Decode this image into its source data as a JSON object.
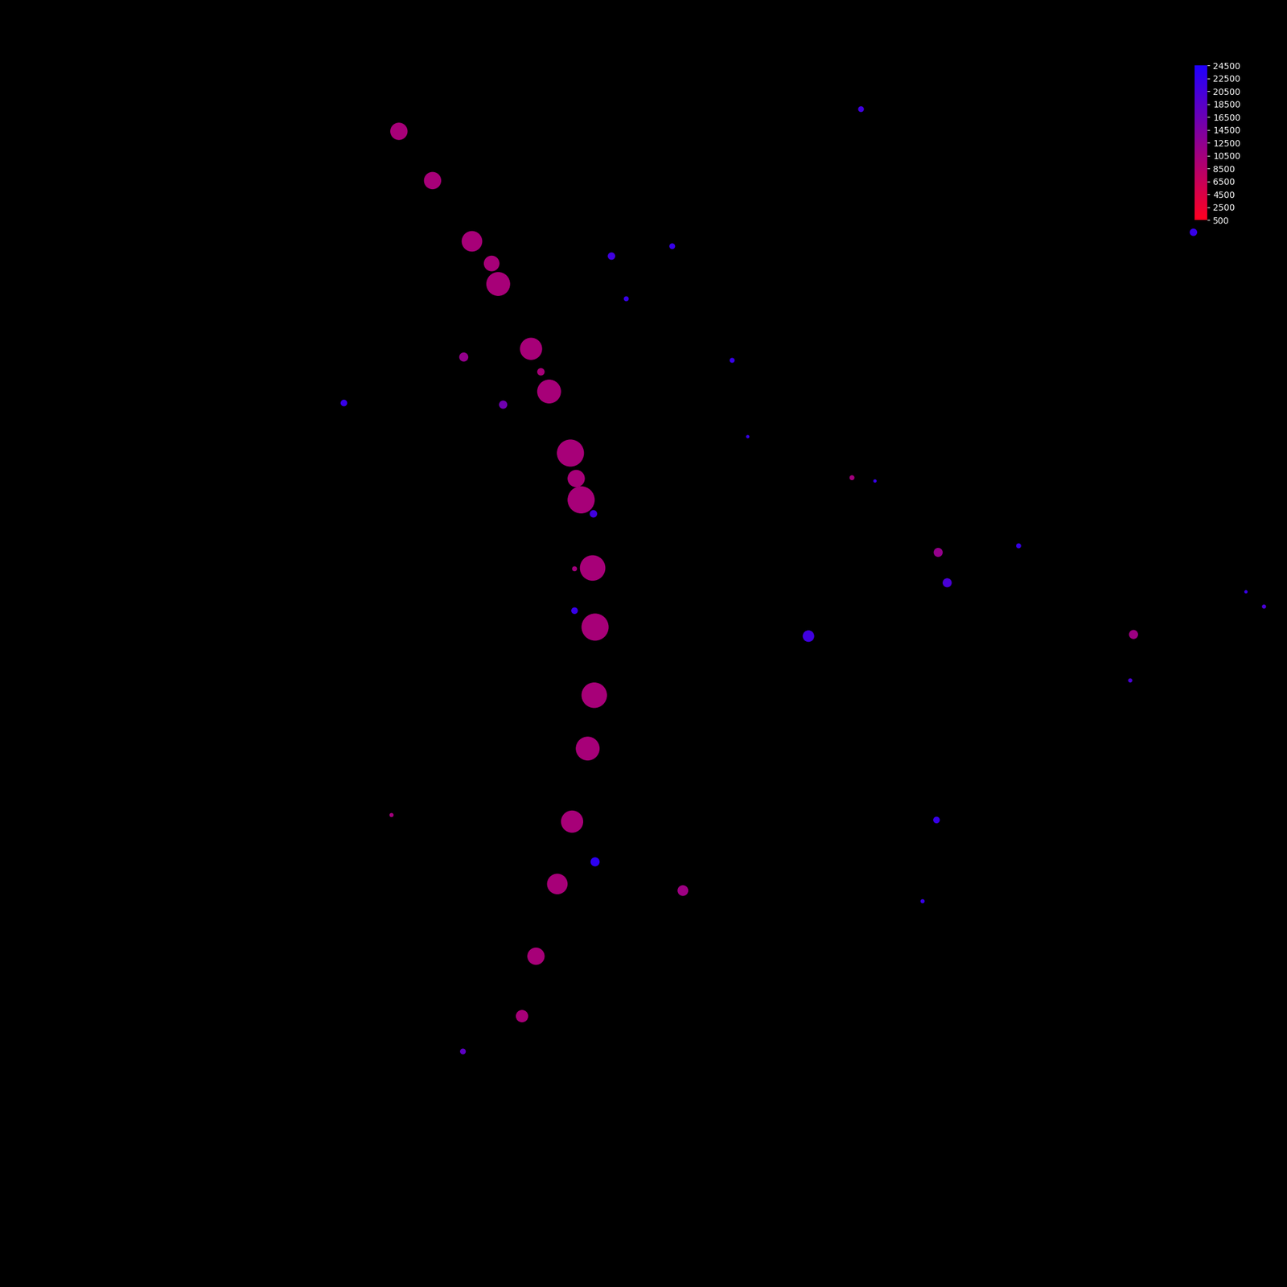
{
  "chart_data": {
    "type": "scatter",
    "tick_labels": false,
    "grid": false,
    "xlim": [
      0,
      1568
    ],
    "ylim": [
      1568,
      0
    ],
    "points": {
      "x": [
        486,
        527,
        575,
        599,
        607,
        647,
        659,
        669,
        695,
        702,
        708,
        722,
        725,
        724,
        716,
        697,
        679,
        653,
        636,
        565,
        613,
        1143,
        1381,
        832,
        1038,
        477,
        700,
        1049,
        745,
        819,
        763,
        892,
        419,
        911,
        1066,
        723,
        1241,
        1154,
        700,
        985,
        1518,
        1540,
        1377,
        1141,
        725,
        1124,
        564,
        1454
      ],
      "y": [
        160,
        220,
        294,
        321,
        346,
        425,
        453,
        477,
        552,
        583,
        609,
        692,
        764,
        847,
        912,
        1001,
        1077,
        1165,
        1238,
        435,
        493,
        673,
        773,
        1085,
        582,
        993,
        693,
        133,
        312,
        300,
        364,
        439,
        491,
        532,
        586,
        626,
        665,
        710,
        744,
        775,
        721,
        739,
        829,
        999,
        1050,
        1098,
        1281,
        283
      ],
      "sizes": [
        20,
        20,
        24,
        18,
        28,
        26,
        8,
        28,
        32,
        20,
        32,
        30,
        32,
        30,
        28,
        26,
        24,
        20,
        14,
        10,
        9,
        10,
        10,
        12,
        5,
        4,
        5,
        6,
        8,
        6,
        5,
        5,
        7,
        3,
        3,
        8,
        5,
        10,
        7,
        13,
        3,
        4,
        4,
        7,
        10,
        4,
        6,
        8
      ],
      "values": [
        10000,
        10000,
        10000,
        10000,
        10000,
        10000,
        10000,
        10000,
        10000,
        10000,
        10000,
        10000,
        10000,
        10000,
        10000,
        10000,
        10000,
        10000,
        10000,
        12000,
        16000,
        12000,
        11000,
        11000,
        10500,
        10500,
        10500,
        21000,
        21000,
        22000,
        22000,
        22000,
        22000,
        22000,
        22000,
        21000,
        22000,
        20000,
        22000,
        21000,
        22000,
        20000,
        20000,
        22000,
        23000,
        22000,
        18000,
        22000
      ]
    },
    "colorbar": {
      "range": [
        500,
        24500
      ],
      "ticks": [
        500,
        2500,
        4500,
        6500,
        8500,
        10500,
        12500,
        14500,
        16500,
        18500,
        20500,
        22500,
        24500
      ]
    }
  }
}
